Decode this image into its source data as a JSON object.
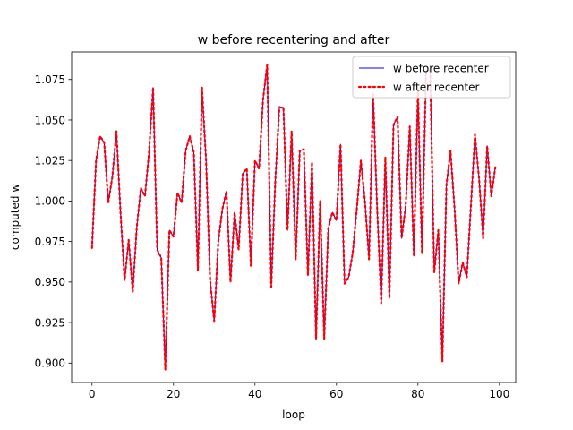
{
  "chart_data": {
    "type": "line",
    "title": "w before recentering and after",
    "xlabel": "loop",
    "ylabel": "computed w",
    "xlim": [
      -5,
      104
    ],
    "ylim": [
      0.888,
      1.092
    ],
    "xticks": [
      0,
      20,
      40,
      60,
      80,
      100
    ],
    "yticks": [
      0.9,
      0.925,
      0.95,
      0.975,
      1.0,
      1.025,
      1.05,
      1.075
    ],
    "ytick_labels": [
      "0.900",
      "0.925",
      "0.950",
      "0.975",
      "1.000",
      "1.025",
      "1.050",
      "1.075"
    ],
    "grid": false,
    "legend_position": "top-right",
    "x": [
      0,
      1,
      2,
      3,
      4,
      5,
      6,
      7,
      8,
      9,
      10,
      11,
      12,
      13,
      14,
      15,
      16,
      17,
      18,
      19,
      20,
      21,
      22,
      23,
      24,
      25,
      26,
      27,
      28,
      29,
      30,
      31,
      32,
      33,
      34,
      35,
      36,
      37,
      38,
      39,
      40,
      41,
      42,
      43,
      44,
      45,
      46,
      47,
      48,
      49,
      50,
      51,
      52,
      53,
      54,
      55,
      56,
      57,
      58,
      59,
      60,
      61,
      62,
      63,
      64,
      65,
      66,
      67,
      68,
      69,
      70,
      71,
      72,
      73,
      74,
      75,
      76,
      77,
      78,
      79,
      80,
      81,
      82,
      83,
      84,
      85,
      86,
      87,
      88,
      89,
      90,
      91,
      92,
      93,
      94,
      95,
      96,
      97,
      98,
      99
    ],
    "series": [
      {
        "name": "w before recenter",
        "color": "#0000ff",
        "style": "solid",
        "values": [
          0.971,
          1.025,
          1.04,
          1.036,
          0.999,
          1.015,
          1.043,
          0.993,
          0.951,
          0.976,
          0.944,
          0.984,
          1.008,
          1.003,
          1.03,
          1.07,
          0.97,
          0.965,
          0.896,
          0.982,
          0.978,
          1.005,
          0.999,
          1.031,
          1.04,
          1.03,
          0.957,
          1.07,
          1.025,
          0.951,
          0.926,
          0.975,
          0.995,
          1.006,
          0.95,
          0.993,
          0.97,
          1.017,
          1.02,
          0.96,
          1.025,
          1.02,
          1.063,
          1.084,
          0.947,
          1.013,
          1.058,
          1.057,
          0.982,
          1.043,
          0.964,
          1.031,
          1.032,
          0.954,
          1.024,
          0.915,
          1.0,
          0.915,
          0.983,
          0.993,
          0.988,
          1.035,
          0.949,
          0.953,
          0.968,
          0.995,
          1.025,
          1.0,
          0.964,
          1.066,
          0.995,
          0.937,
          1.027,
          0.94,
          1.047,
          1.052,
          0.977,
          0.997,
          1.046,
          0.966,
          1.068,
          0.968,
          1.08,
          1.081,
          0.956,
          0.982,
          0.901,
          1.01,
          1.031,
          0.995,
          0.949,
          0.962,
          0.953,
          0.997,
          1.041,
          1.014,
          0.977,
          1.034,
          1.003,
          1.021
        ]
      },
      {
        "name": "w after recenter",
        "color": "#ff0000",
        "style": "dotted",
        "values": [
          0.971,
          1.025,
          1.04,
          1.036,
          0.999,
          1.015,
          1.043,
          0.993,
          0.951,
          0.976,
          0.944,
          0.984,
          1.008,
          1.003,
          1.03,
          1.07,
          0.97,
          0.965,
          0.896,
          0.982,
          0.978,
          1.005,
          0.999,
          1.031,
          1.04,
          1.03,
          0.957,
          1.07,
          1.025,
          0.951,
          0.926,
          0.975,
          0.995,
          1.006,
          0.95,
          0.993,
          0.97,
          1.017,
          1.02,
          0.96,
          1.025,
          1.02,
          1.063,
          1.084,
          0.947,
          1.013,
          1.058,
          1.057,
          0.982,
          1.043,
          0.964,
          1.031,
          1.032,
          0.954,
          1.024,
          0.915,
          1.0,
          0.915,
          0.983,
          0.993,
          0.988,
          1.035,
          0.949,
          0.953,
          0.968,
          0.995,
          1.025,
          1.0,
          0.964,
          1.066,
          0.995,
          0.937,
          1.027,
          0.94,
          1.047,
          1.052,
          0.977,
          0.997,
          1.046,
          0.966,
          1.068,
          0.968,
          1.08,
          1.081,
          0.956,
          0.982,
          0.901,
          1.01,
          1.031,
          0.995,
          0.949,
          0.962,
          0.953,
          0.997,
          1.041,
          1.014,
          0.977,
          1.034,
          1.003,
          1.021
        ]
      }
    ]
  }
}
